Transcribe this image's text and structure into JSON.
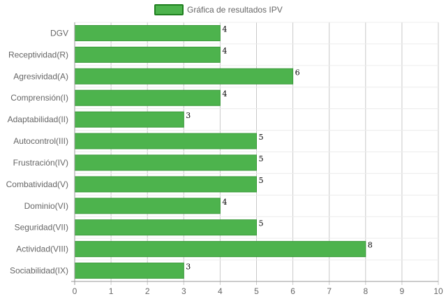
{
  "chart_data": {
    "type": "bar",
    "orientation": "horizontal",
    "categories": [
      "DGV",
      "Receptividad(R)",
      "Agresividad(A)",
      "Comprensión(I)",
      "Adaptabilidad(II)",
      "Autocontrol(III)",
      "Frustración(IV)",
      "Combatividad(V)",
      "Dominio(VI)",
      "Seguridad(VII)",
      "Actividad(VIII)",
      "Sociabilidad(IX)"
    ],
    "series": [
      {
        "name": "Gráfica de resultados IPV",
        "values": [
          4,
          4,
          6,
          4,
          3,
          5,
          5,
          5,
          4,
          5,
          8,
          3
        ]
      }
    ],
    "xlim": [
      0,
      10
    ],
    "x_ticks": [
      "0",
      "1",
      "2",
      "3",
      "4",
      "5",
      "6",
      "7",
      "8",
      "9",
      "10"
    ],
    "grid": true,
    "legend_position": "top",
    "colors": {
      "bar_fill": "#4db34d",
      "bar_border": "#3a9a3a",
      "legend_fill": "#4db34d",
      "legend_border": "#1f7f1f",
      "grid": "#c8c8c8",
      "row_line": "#ececec"
    }
  }
}
